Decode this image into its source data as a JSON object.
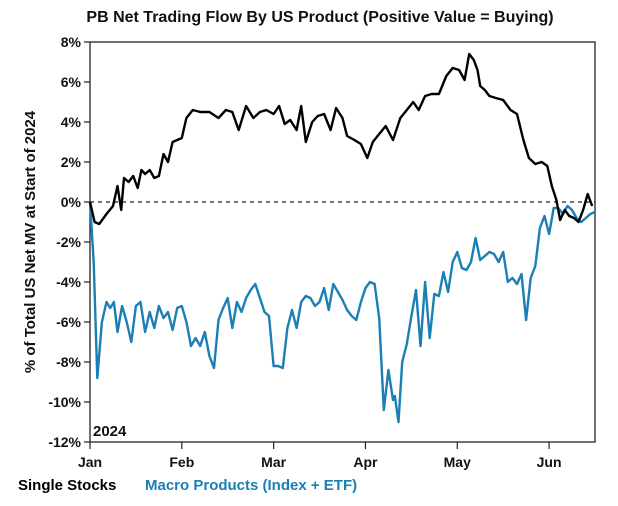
{
  "chart_data": {
    "type": "line",
    "title": "PB Net Trading Flow By US Product (Positive Value = Buying)",
    "ylabel": "% of Total US Net MV at Start of 2024",
    "xlabel": "",
    "year_label": "2024",
    "ylim": [
      -12,
      8
    ],
    "yticks": [
      8,
      6,
      4,
      2,
      0,
      -2,
      -4,
      -6,
      -8,
      -10,
      -12
    ],
    "ytick_labels": [
      "8%",
      "6%",
      "4%",
      "2%",
      "0%",
      "-2%",
      "-4%",
      "-6%",
      "-8%",
      "-10%",
      "-12%"
    ],
    "xlim": [
      0,
      5.5
    ],
    "xticks": [
      0,
      1,
      2,
      3,
      4,
      5
    ],
    "xtick_labels": [
      "Jan",
      "Feb",
      "Mar",
      "Apr",
      "May",
      "Jun"
    ],
    "zero_line": "dashed",
    "series": [
      {
        "name": "Single Stocks",
        "color": "#000000",
        "x": [
          0,
          0.05,
          0.1,
          0.18,
          0.25,
          0.3,
          0.34,
          0.37,
          0.42,
          0.47,
          0.52,
          0.56,
          0.6,
          0.65,
          0.7,
          0.75,
          0.8,
          0.85,
          0.9,
          0.95,
          1.0,
          1.05,
          1.12,
          1.2,
          1.3,
          1.4,
          1.48,
          1.55,
          1.62,
          1.7,
          1.78,
          1.85,
          1.92,
          2.0,
          2.06,
          2.12,
          2.18,
          2.25,
          2.3,
          2.35,
          2.42,
          2.48,
          2.55,
          2.62,
          2.68,
          2.75,
          2.8,
          2.88,
          2.95,
          3.02,
          3.08,
          3.15,
          3.22,
          3.3,
          3.38,
          3.45,
          3.52,
          3.58,
          3.65,
          3.72,
          3.8,
          3.88,
          3.95,
          4.02,
          4.08,
          4.13,
          4.18,
          4.22,
          4.25,
          4.3,
          4.35,
          4.42,
          4.5,
          4.58,
          4.65,
          4.72,
          4.78,
          4.85,
          4.92,
          4.98,
          5.03,
          5.08,
          5.12,
          5.17,
          5.22,
          5.27,
          5.32,
          5.37,
          5.42,
          5.47
        ],
        "values": [
          0,
          -1.0,
          -1.1,
          -0.6,
          -0.2,
          0.8,
          -0.4,
          1.2,
          1.0,
          1.3,
          0.7,
          1.6,
          1.4,
          1.6,
          1.2,
          1.3,
          2.4,
          2.0,
          3.0,
          3.1,
          3.2,
          4.2,
          4.6,
          4.5,
          4.5,
          4.2,
          4.6,
          4.5,
          3.6,
          4.8,
          4.2,
          4.5,
          4.6,
          4.4,
          4.8,
          3.9,
          4.1,
          3.6,
          4.8,
          3.0,
          4.0,
          4.3,
          4.4,
          3.6,
          4.7,
          4.2,
          3.3,
          3.1,
          2.9,
          2.2,
          3.0,
          3.4,
          3.8,
          3.1,
          4.2,
          4.6,
          5.0,
          4.6,
          5.3,
          5.4,
          5.4,
          6.3,
          6.7,
          6.6,
          6.1,
          7.4,
          7.1,
          6.6,
          5.8,
          5.6,
          5.3,
          5.2,
          5.1,
          4.6,
          4.4,
          3.1,
          2.2,
          1.9,
          2.0,
          1.8,
          0.8,
          0.1,
          -0.9,
          -0.4,
          -0.7,
          -0.8,
          -1.0,
          -0.4,
          0.4,
          -0.2
        ]
      },
      {
        "name": "Macro Products (Index + ETF)",
        "color": "#1a7fb5",
        "x": [
          0,
          0.04,
          0.08,
          0.13,
          0.18,
          0.22,
          0.26,
          0.3,
          0.35,
          0.4,
          0.45,
          0.5,
          0.55,
          0.6,
          0.65,
          0.7,
          0.75,
          0.8,
          0.85,
          0.9,
          0.95,
          1.0,
          1.05,
          1.1,
          1.15,
          1.2,
          1.25,
          1.3,
          1.35,
          1.4,
          1.45,
          1.5,
          1.55,
          1.6,
          1.65,
          1.7,
          1.75,
          1.8,
          1.85,
          1.9,
          1.95,
          2.0,
          2.05,
          2.1,
          2.15,
          2.2,
          2.25,
          2.3,
          2.35,
          2.4,
          2.45,
          2.5,
          2.55,
          2.6,
          2.65,
          2.7,
          2.75,
          2.8,
          2.85,
          2.9,
          2.95,
          3.0,
          3.05,
          3.1,
          3.15,
          3.2,
          3.25,
          3.3,
          3.32,
          3.36,
          3.4,
          3.45,
          3.5,
          3.55,
          3.6,
          3.65,
          3.7,
          3.75,
          3.8,
          3.85,
          3.9,
          3.95,
          4.0,
          4.05,
          4.1,
          4.15,
          4.2,
          4.25,
          4.3,
          4.35,
          4.4,
          4.45,
          4.5,
          4.55,
          4.6,
          4.65,
          4.7,
          4.75,
          4.8,
          4.85,
          4.9,
          4.95,
          5.0,
          5.05,
          5.1,
          5.15,
          5.2,
          5.25,
          5.3,
          5.35,
          5.4,
          5.45,
          5.5
        ],
        "values": [
          0,
          -3.0,
          -8.8,
          -6.0,
          -5.0,
          -5.3,
          -5.0,
          -6.5,
          -5.2,
          -6.0,
          -7.0,
          -5.2,
          -5.0,
          -6.5,
          -5.5,
          -6.3,
          -5.2,
          -5.8,
          -5.5,
          -6.4,
          -5.3,
          -5.2,
          -6.0,
          -7.2,
          -6.8,
          -7.2,
          -6.5,
          -7.7,
          -8.3,
          -5.9,
          -5.3,
          -4.8,
          -6.3,
          -5.0,
          -5.5,
          -4.8,
          -4.4,
          -4.1,
          -4.8,
          -5.5,
          -5.7,
          -8.2,
          -8.2,
          -8.3,
          -6.3,
          -5.4,
          -6.3,
          -5.0,
          -4.7,
          -4.8,
          -5.2,
          -5.0,
          -4.3,
          -5.4,
          -4.1,
          -4.5,
          -4.9,
          -5.4,
          -5.7,
          -5.9,
          -5.0,
          -4.3,
          -4.0,
          -4.1,
          -5.8,
          -10.4,
          -8.4,
          -9.9,
          -9.7,
          -11.0,
          -8.0,
          -7.1,
          -5.7,
          -4.4,
          -7.2,
          -4.0,
          -6.8,
          -4.6,
          -4.7,
          -3.5,
          -4.5,
          -3.0,
          -2.5,
          -3.3,
          -3.4,
          -3.0,
          -1.8,
          -2.9,
          -2.7,
          -2.5,
          -2.6,
          -3.0,
          -2.5,
          -4.0,
          -3.8,
          -4.1,
          -3.6,
          -5.9,
          -3.8,
          -3.2,
          -1.3,
          -0.7,
          -1.6,
          -0.3,
          -0.3,
          -0.6,
          -0.2,
          -0.4,
          -0.8,
          -1.0,
          -0.8,
          -0.6,
          -0.5
        ]
      }
    ]
  }
}
